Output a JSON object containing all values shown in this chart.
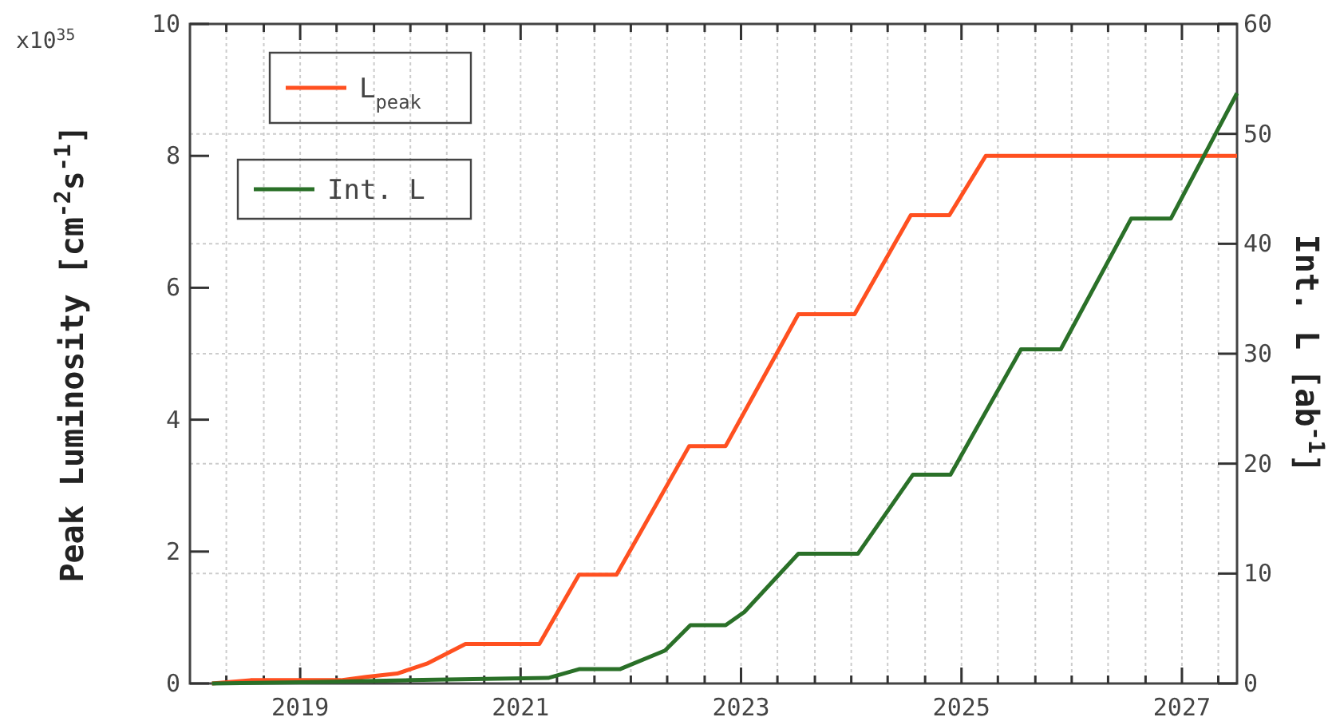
{
  "chart_data": {
    "type": "line",
    "ylabel": "Peak Luminosity [cm$^{-2}$s$^{-1}$]",
    "y2label": "Int. L [ab$^{-1}$]",
    "annotations": [
      "x10$^{35}$"
    ],
    "xlim": [
      2018,
      2027.5
    ],
    "xticks": [
      {
        "value": 2018.33,
        "label": null
      },
      {
        "value": 2018.67,
        "label": null
      },
      2019,
      {
        "value": 2019.33,
        "label": null
      },
      {
        "value": 2019.67,
        "label": null
      },
      {
        "value": 2020,
        "label": null
      },
      {
        "value": 2020.33,
        "label": null
      },
      {
        "value": 2020.67,
        "label": null
      },
      2021,
      {
        "value": 2021.33,
        "label": null
      },
      {
        "value": 2021.67,
        "label": null
      },
      {
        "value": 2022,
        "label": null
      },
      {
        "value": 2022.33,
        "label": null
      },
      {
        "value": 2022.67,
        "label": null
      },
      2023,
      {
        "value": 2023.33,
        "label": null
      },
      {
        "value": 2023.67,
        "label": null
      },
      {
        "value": 2024,
        "label": null
      },
      {
        "value": 2024.33,
        "label": null
      },
      {
        "value": 2024.67,
        "label": null
      },
      2025,
      {
        "value": 2025.33,
        "label": null
      },
      {
        "value": 2025.67,
        "label": null
      },
      {
        "value": 2026,
        "label": null
      },
      {
        "value": 2026.33,
        "label": null
      },
      {
        "value": 2026.67,
        "label": null
      },
      2027,
      {
        "value": 2027.33,
        "label": null
      }
    ],
    "ylim": [
      0,
      10
    ],
    "yticks": [
      0,
      2,
      4,
      6,
      8,
      10
    ],
    "y2lim": [
      0,
      60
    ],
    "y2ticks": [
      0,
      10,
      20,
      30,
      40,
      50,
      60
    ],
    "grid": true,
    "legend": "top left",
    "line_style": "solid",
    "series": [
      {
        "name": "L$_{peak}$",
        "color": "#ff5020",
        "axis": "y",
        "x": [
          2018.2,
          2018.55,
          2019.37,
          2019.6,
          2019.88,
          2020.15,
          2020.5,
          2021.17,
          2021.53,
          2021.87,
          2022.53,
          2022.86,
          2023.52,
          2024.03,
          2024.54,
          2024.89,
          2025.22,
          2027.5
        ],
        "values": [
          0,
          0.05,
          0.05,
          0.1,
          0.15,
          0.3,
          0.6,
          0.6,
          1.65,
          1.65,
          3.6,
          3.6,
          5.6,
          5.6,
          7.1,
          7.1,
          8,
          8
        ]
      },
      {
        "name": "Int. L",
        "color": "#2a7028",
        "axis": "y2",
        "x": [
          2018.2,
          2019,
          2020,
          2021.25,
          2021.53,
          2021.9,
          2022.31,
          2022.54,
          2022.86,
          2023.03,
          2023.52,
          2024.06,
          2024.56,
          2024.9,
          2025.54,
          2025.9,
          2026.54,
          2026.9,
          2027.5
        ],
        "values": [
          0,
          0.1,
          0.3,
          0.5,
          1.3,
          1.3,
          3,
          5.3,
          5.3,
          6.5,
          11.8,
          11.8,
          19,
          19,
          30.4,
          30.4,
          42.3,
          42.3,
          53.7
        ]
      }
    ]
  }
}
